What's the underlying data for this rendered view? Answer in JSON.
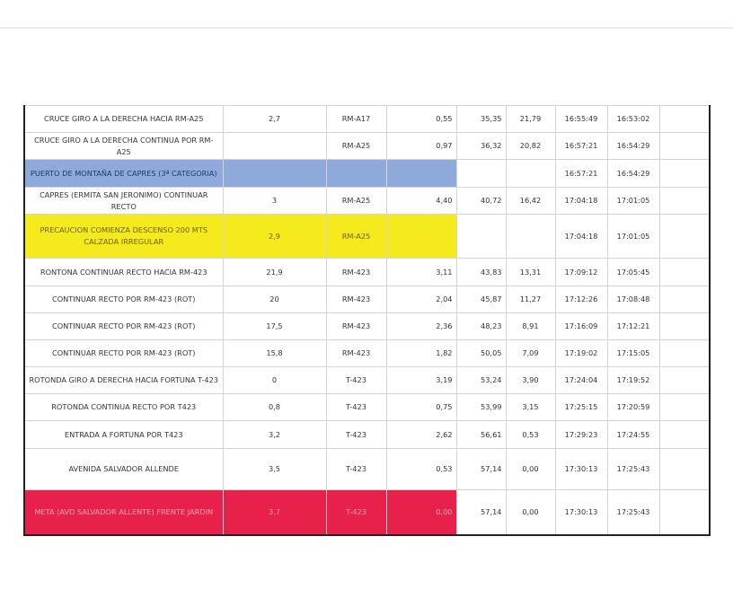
{
  "rows": [
    {
      "desc": "CRUCE GIRO A LA DERECHA HACIA RM-A25",
      "km": "2,7",
      "road": "RM-A17",
      "partial": "0,55",
      "total": "35,35",
      "remaining": "21,79",
      "time1": "16:55:49",
      "time2": "16:53:02",
      "style": "normal"
    },
    {
      "desc": "CRUCE GIRO A LA DERECHA CONTINUA POR RM-A25",
      "km": "",
      "road": "RM-A25",
      "partial": "0,97",
      "total": "36,32",
      "remaining": "20,82",
      "time1": "16:57:21",
      "time2": "16:54:29",
      "style": "normal"
    },
    {
      "desc": "PUERTO DE MONTAÑA DE CAPRES (3ª CATEGORIA)",
      "km": "",
      "road": "",
      "partial": "",
      "total": "",
      "remaining": "",
      "time1": "16:57:21",
      "time2": "16:54:29",
      "style": "blue"
    },
    {
      "desc": "CAPRES (ERMITA SAN JERONIMO) CONTINUAR RECTO",
      "km": "3",
      "road": "RM-A25",
      "partial": "4,40",
      "total": "40,72",
      "remaining": "16,42",
      "time1": "17:04:18",
      "time2": "17:01:05",
      "style": "normal"
    },
    {
      "desc": "PRECAUCION COMIENZA DESCENSO 200 MTS CALZADA IRREGULAR",
      "km": "2,9",
      "road": "RM-A25",
      "partial": "",
      "total": "",
      "remaining": "",
      "time1": "17:04:18",
      "time2": "17:01:05",
      "style": "yellow"
    },
    {
      "desc": "RONTONA CONTINUAR RECTO HACIA RM-423",
      "km": "21,9",
      "road": "RM-423",
      "partial": "3,11",
      "total": "43,83",
      "remaining": "13,31",
      "time1": "17:09:12",
      "time2": "17:05:45",
      "style": "normal"
    },
    {
      "desc": "CONTINUAR RECTO POR RM-423 (ROT)",
      "km": "20",
      "road": "RM-423",
      "partial": "2,04",
      "total": "45,87",
      "remaining": "11,27",
      "time1": "17:12:26",
      "time2": "17:08:48",
      "style": "normal"
    },
    {
      "desc": "CONTINUAR RECTO POR RM-423 (ROT)",
      "km": "17,5",
      "road": "RM-423",
      "partial": "2,36",
      "total": "48,23",
      "remaining": "8,91",
      "time1": "17:16:09",
      "time2": "17:12:21",
      "style": "normal"
    },
    {
      "desc": "CONTINUAR RECTO POR RM-423 (ROT)",
      "km": "15,8",
      "road": "RM-423",
      "partial": "1,82",
      "total": "50,05",
      "remaining": "7,09",
      "time1": "17:19:02",
      "time2": "17:15:05",
      "style": "normal"
    },
    {
      "desc": "ROTONDA GIRO A DERECHA HACIA FORTUNA T-423",
      "km": "0",
      "road": "T-423",
      "partial": "3,19",
      "total": "53,24",
      "remaining": "3,90",
      "time1": "17:24:04",
      "time2": "17:19:52",
      "style": "normal"
    },
    {
      "desc": "ROTONDA CONTINUA RECTO POR T423",
      "km": "0,8",
      "road": "T-423",
      "partial": "0,75",
      "total": "53,99",
      "remaining": "3,15",
      "time1": "17:25:15",
      "time2": "17:20:59",
      "style": "normal"
    },
    {
      "desc": "ENTRADA A FORTUNA POR T423",
      "km": "3,2",
      "road": "T-423",
      "partial": "2,62",
      "total": "56,61",
      "remaining": "0,53",
      "time1": "17:29:23",
      "time2": "17:24:55",
      "style": "normal"
    },
    {
      "desc": "AVENIDA SALVADOR ALLENDE",
      "km": "3,5",
      "road": "T-423",
      "partial": "0,53",
      "total": "57,14",
      "remaining": "0,00",
      "time1": "17:30:13",
      "time2": "17:25:43",
      "style": "normal"
    },
    {
      "desc": "META (AVD SALVADOR ALLENTE) FRENTE JARDIN",
      "km": "3,7",
      "road": "T-423",
      "partial": "0,00",
      "total": "57,14",
      "remaining": "0,00",
      "time1": "17:30:13",
      "time2": "17:25:43",
      "style": "red"
    }
  ],
  "colors": {
    "blue": "#8eaadb",
    "yellow": "#f4ea1c",
    "red": "#e8214b"
  }
}
